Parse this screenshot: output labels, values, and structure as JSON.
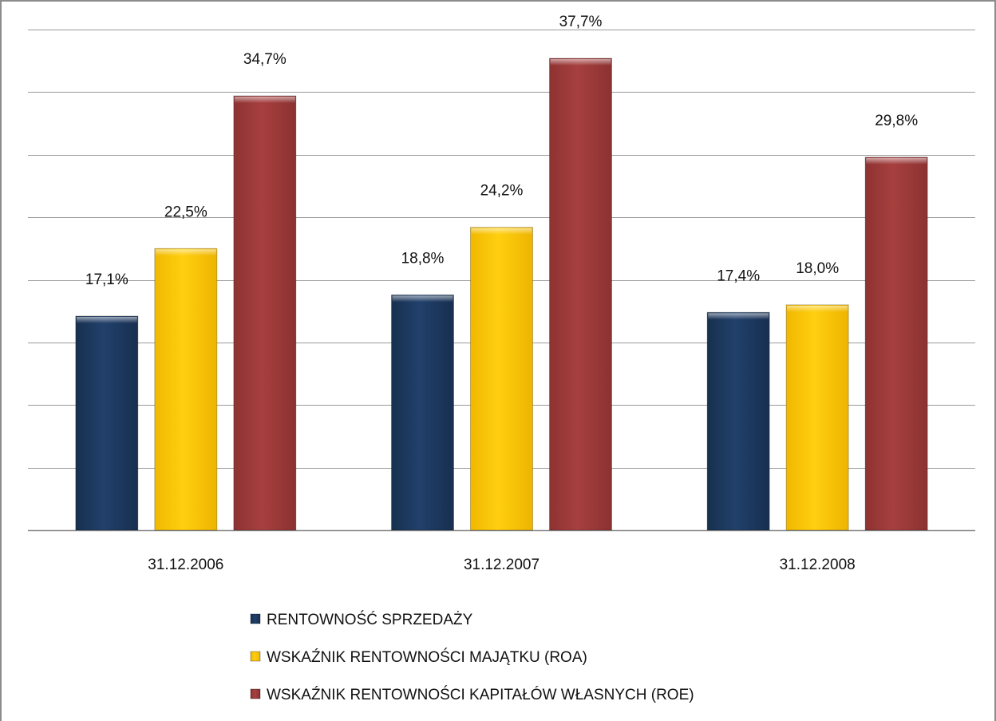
{
  "chart_data": {
    "type": "bar",
    "categories": [
      "31.12.2006",
      "31.12.2007",
      "31.12.2008"
    ],
    "series": [
      {
        "name": "RENTOWNOŚĆ SPRZEDAŻY",
        "values": [
          17.1,
          18.8,
          17.4
        ],
        "labels": [
          "17,1%",
          "18,8%",
          "17,4%"
        ],
        "color": "#1f3a63"
      },
      {
        "name": "WSKAŹNIK RENTOWNOŚCI MAJĄTKU (ROA)",
        "values": [
          22.5,
          24.2,
          18.0
        ],
        "labels": [
          "22,5%",
          "24,2%",
          "18,0%"
        ],
        "color": "#ffc800"
      },
      {
        "name": "WSKAŹNIK RENTOWNOŚCI KAPITAŁÓW WŁASNYCH (ROE)",
        "values": [
          34.7,
          37.7,
          29.8
        ],
        "labels": [
          "34,7%",
          "37,7%",
          "29,8%"
        ],
        "color": "#a03c3c"
      }
    ],
    "ylim": [
      0,
      40
    ],
    "gridlines": true,
    "legend_position": "bottom"
  }
}
